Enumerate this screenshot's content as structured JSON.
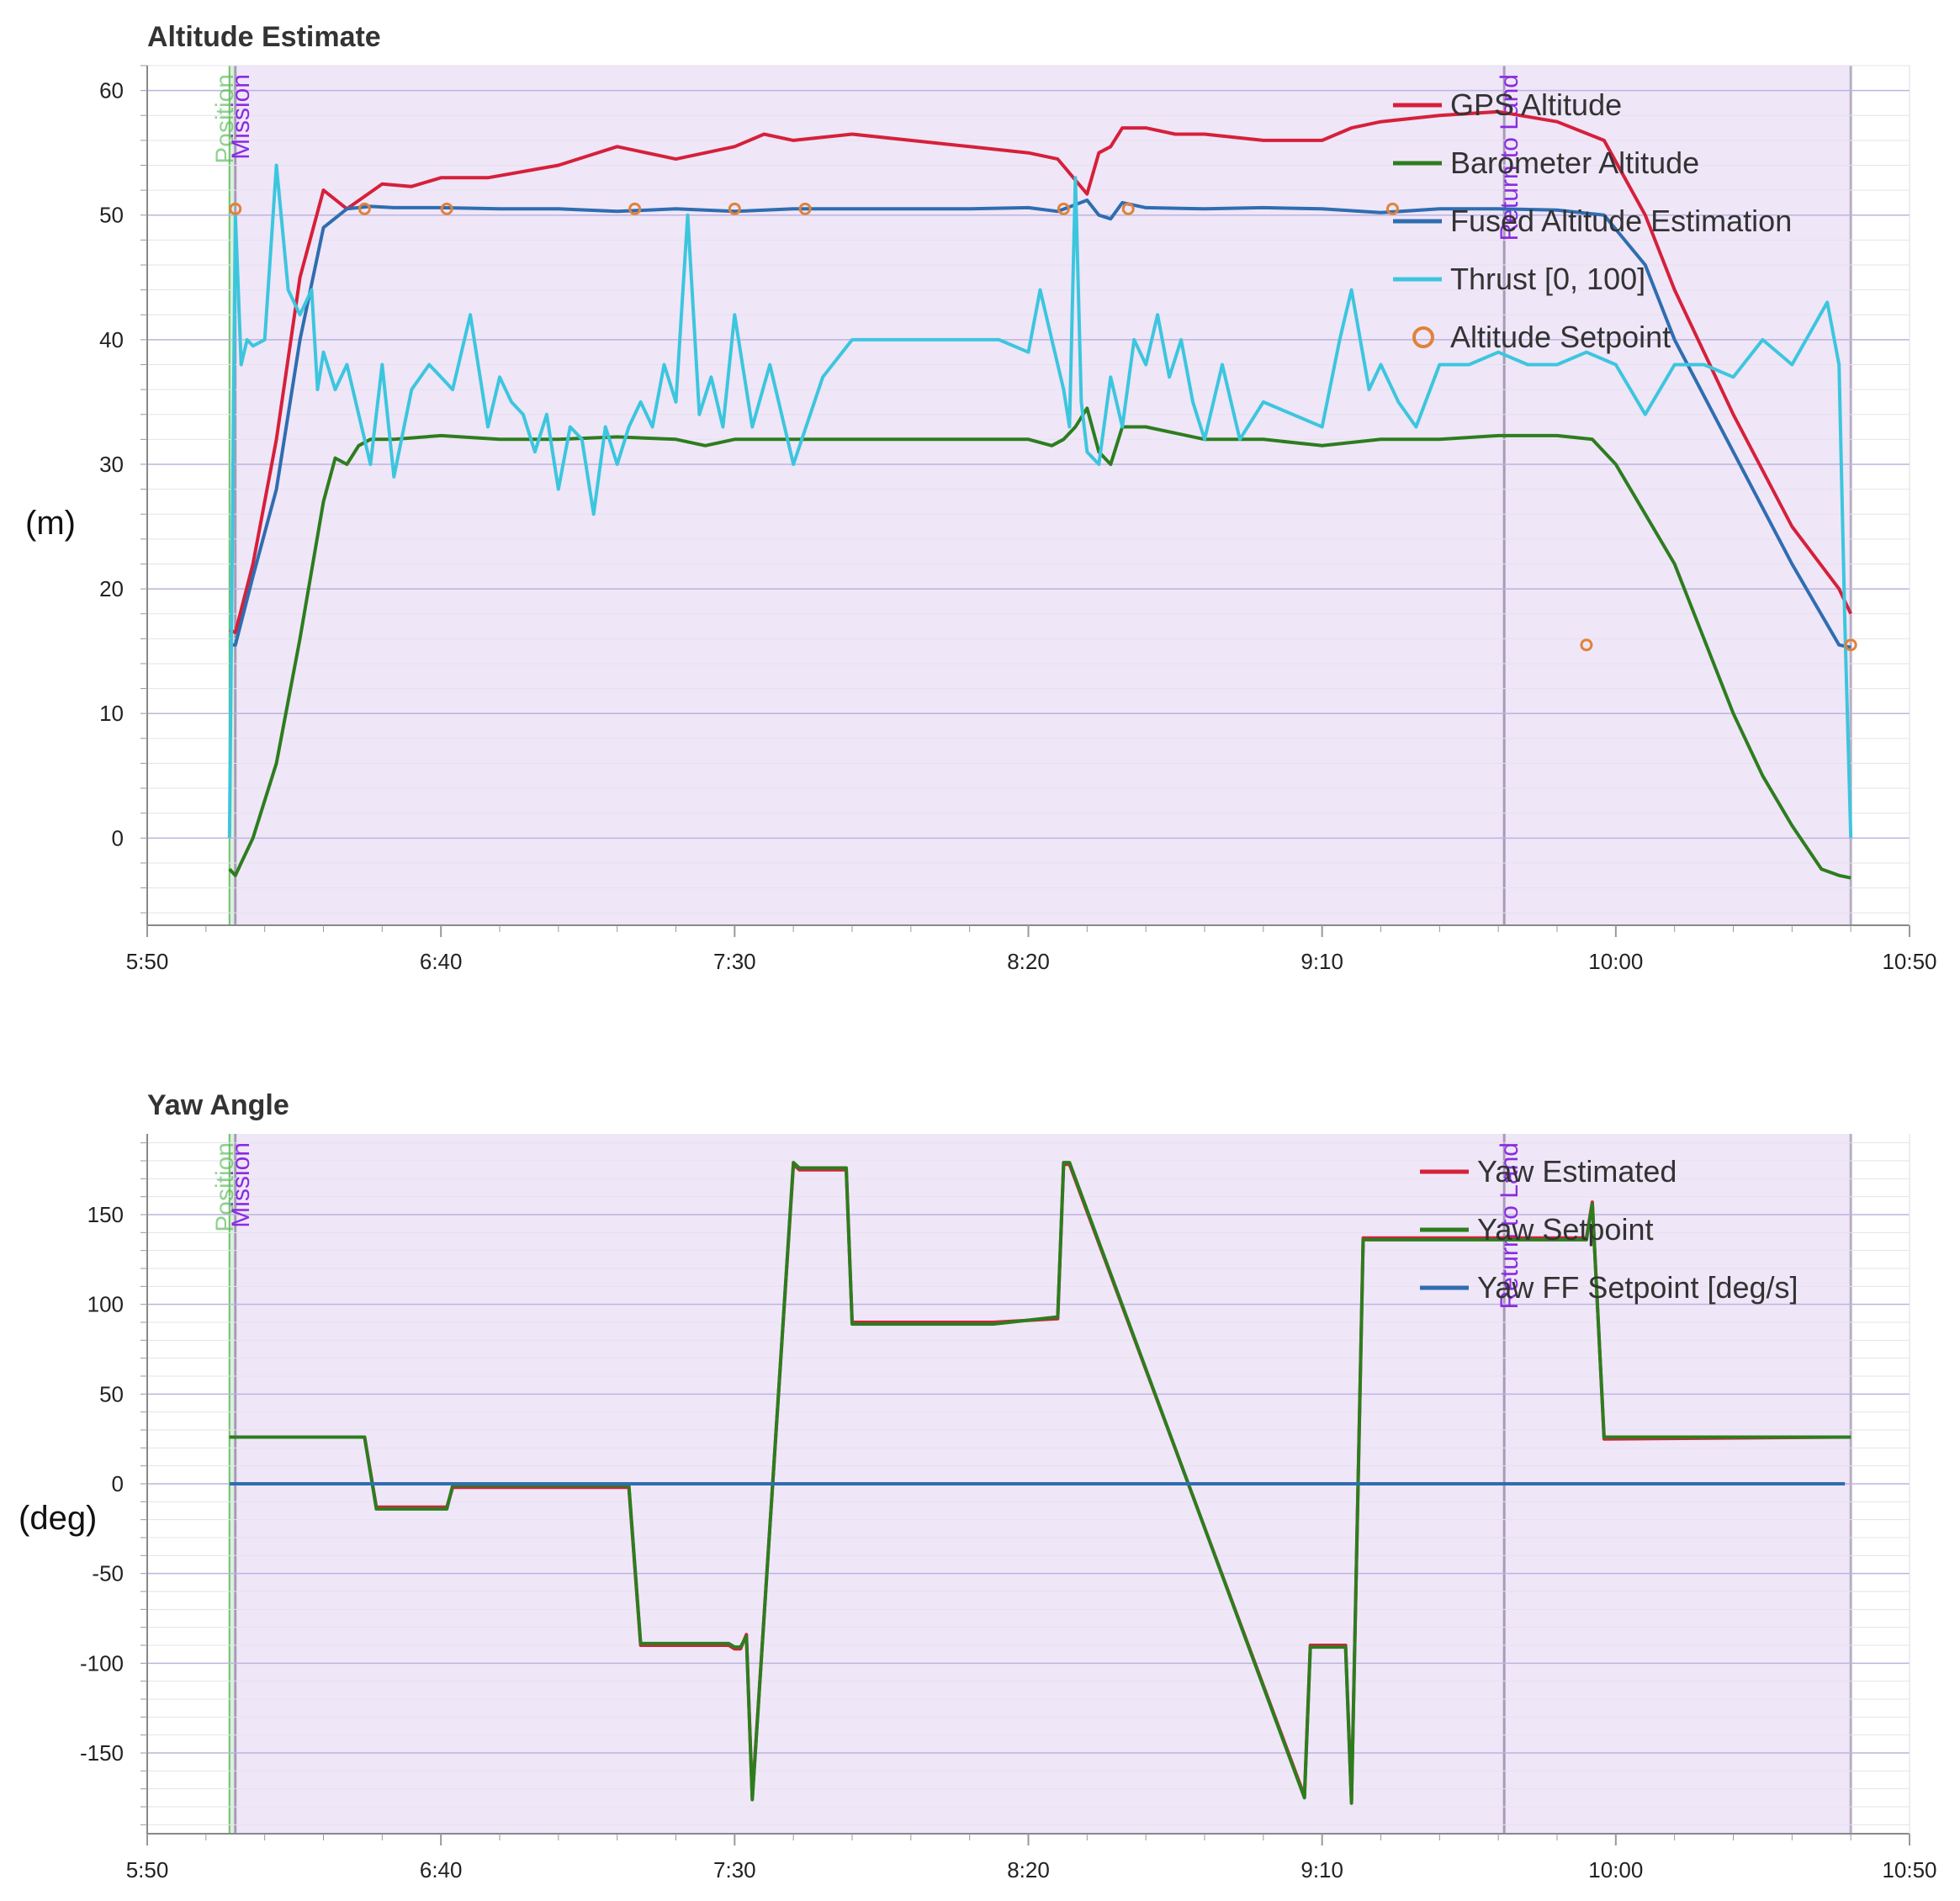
{
  "chart_data": [
    {
      "type": "line",
      "title": "Altitude Estimate",
      "ylabel": "(m)",
      "xlim": [
        350,
        650
      ],
      "ylim": [
        -7,
        62
      ],
      "yticks": [
        "60",
        "50",
        "40",
        "30",
        "20",
        "10",
        "0"
      ],
      "ytick_values": [
        60,
        50,
        40,
        30,
        20,
        10,
        0
      ],
      "xticks": [
        "5:50",
        "6:40",
        "7:30",
        "8:20",
        "9:10",
        "10:00",
        "10:50"
      ],
      "xtick_values": [
        350,
        400,
        450,
        500,
        550,
        600,
        650
      ],
      "x_unit": "time (m:ss)",
      "modes": [
        {
          "label": "Position",
          "start": 364,
          "end": 365,
          "color": "#3caa3c"
        },
        {
          "label": "Mission",
          "start": 365,
          "end": 581,
          "color": "#7f00ff"
        },
        {
          "label": "Return to Land",
          "start": 581,
          "end": 640,
          "color": "#7f00ff"
        }
      ],
      "series": [
        {
          "name": "GPS Altitude",
          "color": "#d6203a",
          "x": [
            364,
            365,
            368,
            372,
            376,
            380,
            384,
            387,
            390,
            395,
            400,
            408,
            420,
            430,
            440,
            450,
            455,
            460,
            470,
            480,
            490,
            500,
            505,
            510,
            512,
            514,
            516,
            520,
            525,
            530,
            540,
            550,
            555,
            560,
            570,
            580,
            590,
            598,
            605,
            610,
            620,
            630,
            638,
            640
          ],
          "y": [
            16.7,
            16.5,
            22,
            32,
            45,
            52,
            50.5,
            51.5,
            52.5,
            52.3,
            53,
            53,
            54,
            55.5,
            54.5,
            55.5,
            56.5,
            56,
            56.5,
            56,
            55.5,
            55,
            54.5,
            51.7,
            55,
            55.5,
            57,
            57,
            56.5,
            56.5,
            56,
            56,
            57,
            57.5,
            58,
            58.3,
            57.5,
            56,
            50,
            44,
            34,
            25,
            20,
            18
          ]
        },
        {
          "name": "Barometer Altitude",
          "color": "#2d7d1e",
          "x": [
            364,
            365,
            366,
            368,
            372,
            376,
            380,
            382,
            384,
            386,
            388,
            392,
            400,
            410,
            420,
            430,
            440,
            445,
            450,
            460,
            470,
            480,
            490,
            500,
            504,
            506,
            508,
            510,
            512,
            514,
            516,
            520,
            530,
            540,
            550,
            560,
            570,
            580,
            590,
            596,
            600,
            605,
            610,
            615,
            620,
            625,
            630,
            635,
            638,
            640
          ],
          "y": [
            -2.5,
            -3,
            -2,
            0,
            6,
            16,
            27,
            30.5,
            30,
            31.5,
            32,
            32,
            32.3,
            32,
            32,
            32.2,
            32,
            31.5,
            32,
            32,
            32,
            32,
            32,
            32,
            31.5,
            32,
            33,
            34.5,
            31,
            30,
            33,
            33,
            32,
            32,
            31.5,
            32,
            32,
            32.3,
            32.3,
            32,
            30,
            26,
            22,
            16,
            10,
            5,
            1,
            -2.5,
            -3,
            -3.2
          ]
        },
        {
          "name": "Fused Altitude Estimation",
          "color": "#2f6db0",
          "x": [
            364,
            365,
            368,
            372,
            376,
            380,
            384,
            388,
            392,
            400,
            410,
            420,
            430,
            440,
            450,
            460,
            470,
            480,
            490,
            500,
            505,
            510,
            512,
            514,
            516,
            520,
            530,
            540,
            550,
            560,
            570,
            580,
            590,
            598,
            605,
            610,
            620,
            630,
            638,
            640
          ],
          "y": [
            15.5,
            15.5,
            21,
            28,
            40,
            49,
            50.5,
            50.7,
            50.6,
            50.6,
            50.5,
            50.5,
            50.3,
            50.5,
            50.3,
            50.5,
            50.5,
            50.5,
            50.5,
            50.6,
            50.3,
            51.2,
            50,
            49.7,
            51,
            50.6,
            50.5,
            50.6,
            50.5,
            50.2,
            50.5,
            50.5,
            50.4,
            50,
            46,
            40,
            31,
            22,
            15.5,
            15.3
          ]
        },
        {
          "name": "Thrust [0, 100]",
          "color": "#3cc6de",
          "x": [
            364,
            365,
            366,
            367,
            368,
            370,
            372,
            374,
            376,
            378,
            379,
            380,
            382,
            384,
            386,
            388,
            390,
            392,
            395,
            398,
            400,
            402,
            405,
            408,
            410,
            412,
            414,
            416,
            418,
            420,
            422,
            424,
            426,
            428,
            430,
            432,
            434,
            436,
            438,
            440,
            442,
            444,
            446,
            448,
            450,
            453,
            456,
            460,
            465,
            470,
            480,
            490,
            495,
            500,
            502,
            504,
            506,
            507,
            508,
            509,
            510,
            512,
            514,
            516,
            518,
            520,
            522,
            524,
            526,
            528,
            530,
            533,
            536,
            540,
            545,
            550,
            553,
            555,
            558,
            560,
            563,
            566,
            570,
            575,
            580,
            585,
            590,
            595,
            600,
            605,
            610,
            615,
            620,
            625,
            630,
            636,
            638,
            639,
            640
          ],
          "y": [
            0,
            50,
            38,
            40,
            39.5,
            40,
            54,
            44,
            42,
            44,
            36,
            39,
            36,
            38,
            34,
            30,
            38,
            29,
            36,
            38,
            37,
            36,
            42,
            33,
            37,
            35,
            34,
            31,
            34,
            28,
            33,
            32,
            26,
            33,
            30,
            33,
            35,
            33,
            38,
            35,
            50,
            34,
            37,
            33,
            42,
            33,
            38,
            30,
            37,
            40,
            40,
            40,
            40,
            39,
            44,
            40,
            36,
            33,
            53,
            35,
            31,
            30,
            37,
            33,
            40,
            38,
            42,
            37,
            40,
            35,
            32,
            38,
            32,
            35,
            34,
            33,
            40,
            44,
            36,
            38,
            35,
            33,
            38,
            38,
            39,
            38,
            38,
            39,
            38,
            34,
            38,
            38,
            37,
            40,
            38,
            43,
            38,
            17,
            0
          ]
        },
        {
          "name": "Altitude Setpoint",
          "color": "#e0823a",
          "marker": "circle",
          "x": [
            365,
            387,
            401,
            433,
            450,
            462,
            506,
            517,
            562,
            595,
            640
          ],
          "y": [
            50.5,
            50.5,
            50.5,
            50.5,
            50.5,
            50.5,
            50.5,
            50.5,
            50.5,
            15.5,
            15.5
          ]
        }
      ]
    },
    {
      "type": "line",
      "title": "Yaw Angle",
      "ylabel": "(deg)",
      "xlim": [
        350,
        650
      ],
      "ylim": [
        -195,
        195
      ],
      "yticks": [
        "150",
        "100",
        "50",
        "0",
        "-50",
        "-100",
        "-150"
      ],
      "ytick_values": [
        150,
        100,
        50,
        0,
        -50,
        -100,
        -150
      ],
      "xticks": [
        "5:50",
        "6:40",
        "7:30",
        "8:20",
        "9:10",
        "10:00",
        "10:50"
      ],
      "xtick_values": [
        350,
        400,
        450,
        500,
        550,
        600,
        650
      ],
      "x_unit": "time (m:ss)",
      "modes": [
        {
          "label": "Position",
          "start": 364,
          "end": 365,
          "color": "#3caa3c"
        },
        {
          "label": "Mission",
          "start": 365,
          "end": 581,
          "color": "#7f00ff"
        },
        {
          "label": "Return to Land",
          "start": 581,
          "end": 640,
          "color": "#7f00ff"
        }
      ],
      "series": [
        {
          "name": "Yaw Estimated",
          "color": "#d6203a",
          "x": [
            364,
            387,
            389,
            401,
            402,
            432,
            434,
            449,
            450,
            451,
            452,
            453,
            460,
            461,
            469,
            470,
            493,
            494,
            505,
            506,
            507,
            547,
            548,
            549,
            554,
            555,
            557,
            595,
            596,
            598,
            640
          ],
          "y": [
            26,
            26,
            -13,
            -13,
            -2,
            -2,
            -90,
            -90,
            -92,
            -92,
            -84,
            -175,
            178,
            175,
            175,
            90,
            90,
            90,
            92,
            178,
            178,
            -174,
            -90,
            -90,
            -90,
            -177,
            137,
            137,
            157,
            25,
            26
          ]
        },
        {
          "name": "Yaw Setpoint",
          "color": "#2d7d1e",
          "x": [
            364,
            387,
            389,
            401,
            402,
            432,
            434,
            449,
            450,
            451,
            452,
            453,
            460,
            461,
            469,
            470,
            493,
            494,
            505,
            506,
            507,
            547,
            548,
            549,
            554,
            555,
            557,
            595,
            596,
            598,
            640
          ],
          "y": [
            26,
            26,
            -14,
            -14,
            -1,
            -1,
            -89,
            -89,
            -91,
            -91,
            -85,
            -176,
            179,
            176,
            176,
            89,
            89,
            89,
            93,
            179,
            179,
            -175,
            -91,
            -91,
            -91,
            -178,
            136,
            136,
            156,
            26,
            26
          ]
        },
        {
          "name": "Yaw FF Setpoint [deg/s]",
          "color": "#2f6db0",
          "x": [
            364,
            639
          ],
          "y": [
            0,
            0
          ]
        }
      ]
    }
  ]
}
